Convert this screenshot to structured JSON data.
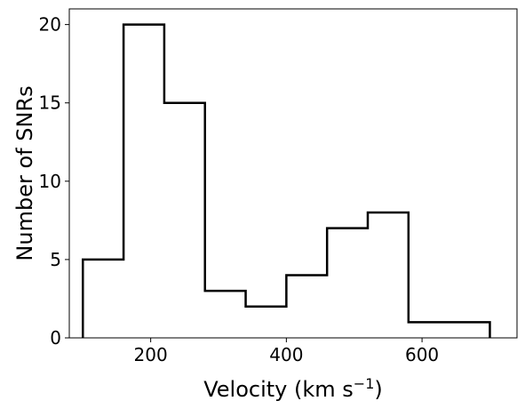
{
  "chart_data": {
    "type": "histogram",
    "xlabel": "Velocity (km s⁻¹)",
    "ylabel": "Number of SNRs",
    "xlim": [
      80,
      740
    ],
    "ylim": [
      0,
      21
    ],
    "x_ticks": [
      200,
      400,
      600
    ],
    "y_ticks": [
      0,
      5,
      10,
      15,
      20
    ],
    "bin_edges": [
      100,
      160,
      220,
      280,
      340,
      400,
      460,
      520,
      580,
      640,
      700
    ],
    "counts": [
      5,
      20,
      15,
      3,
      2,
      4,
      7,
      8,
      1,
      1
    ],
    "histtype": "step",
    "line_color": "#000000",
    "grid": false
  }
}
